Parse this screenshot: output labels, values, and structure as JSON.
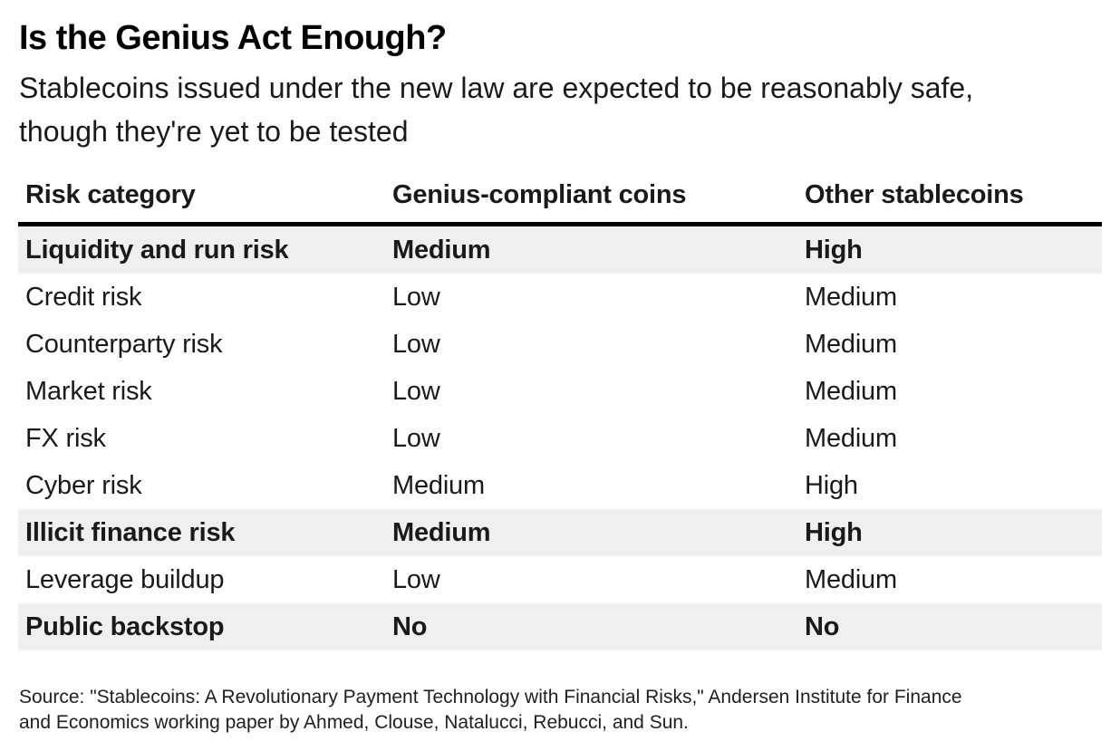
{
  "colors": {
    "background": "#ffffff",
    "text": "#1a1a1a",
    "stripe_row_background": "#efefef",
    "header_rule": "#000000"
  },
  "chart_data": {
    "type": "table",
    "title": "Is the Genius Act Enough?",
    "subtitle": "Stablecoins issued under the new law are expected to be reasonably safe,\nthough they're yet to be tested",
    "columns": [
      "Risk category",
      "Genius-compliant coins",
      "Other stablecoins"
    ],
    "rows": [
      {
        "category": "Liquidity and run risk",
        "genius_compliant_coins": "Medium",
        "other_stablecoins": "High",
        "emphasized": true
      },
      {
        "category": "Credit risk",
        "genius_compliant_coins": "Low",
        "other_stablecoins": "Medium",
        "emphasized": false
      },
      {
        "category": "Counterparty risk",
        "genius_compliant_coins": "Low",
        "other_stablecoins": "Medium",
        "emphasized": false
      },
      {
        "category": "Market risk",
        "genius_compliant_coins": "Low",
        "other_stablecoins": "Medium",
        "emphasized": false
      },
      {
        "category": "FX risk",
        "genius_compliant_coins": "Low",
        "other_stablecoins": "Medium",
        "emphasized": false
      },
      {
        "category": "Cyber risk",
        "genius_compliant_coins": "Medium",
        "other_stablecoins": "High",
        "emphasized": false
      },
      {
        "category": "Illicit finance risk",
        "genius_compliant_coins": "Medium",
        "other_stablecoins": "High",
        "emphasized": true
      },
      {
        "category": "Leverage buildup",
        "genius_compliant_coins": "Low",
        "other_stablecoins": "Medium",
        "emphasized": false
      },
      {
        "category": "Public backstop",
        "genius_compliant_coins": "No",
        "other_stablecoins": "No",
        "emphasized": true
      }
    ],
    "source": "Source: \"Stablecoins: A Revolutionary Payment Technology with Financial Risks,\" Andersen Institute for Finance\nand Economics working paper by Ahmed, Clouse, Natalucci, Rebucci, and Sun.",
    "legend_position": "none",
    "grid": false
  }
}
